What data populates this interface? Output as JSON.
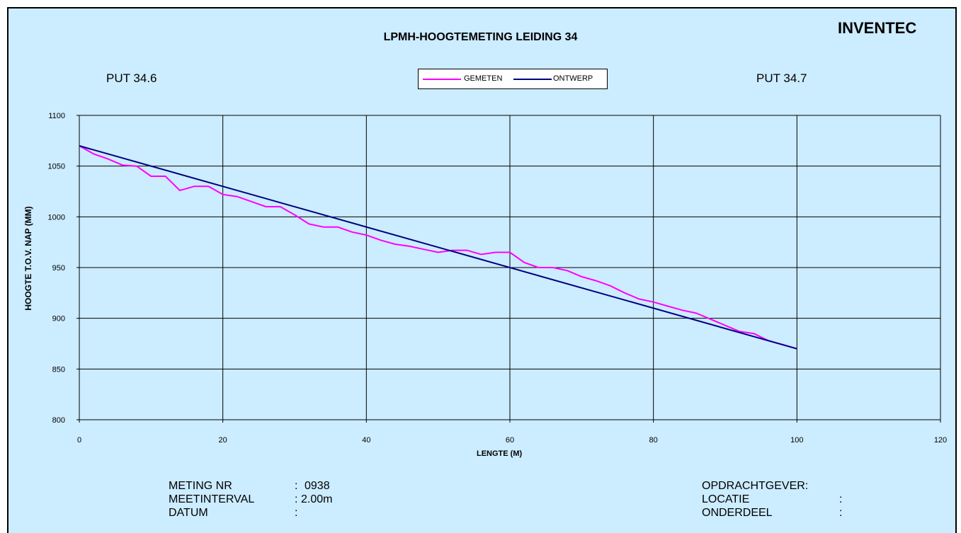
{
  "brand": "INVENTEC",
  "labels": {
    "put_left": "PUT 34.6",
    "put_right": "PUT 34.7"
  },
  "info": {
    "left": [
      {
        "label": "METING NR",
        "sep": ":",
        "value": "0938"
      },
      {
        "label": "MEETINTERVAL",
        "sep": ":",
        "value": "2.00m"
      },
      {
        "label": "DATUM",
        "sep": ":",
        "value": ""
      }
    ],
    "right": [
      {
        "label": "OPDRACHTGEVER:",
        "sep": "",
        "value": ""
      },
      {
        "label": "LOCATIE",
        "sep": ":",
        "value": ""
      },
      {
        "label": "ONDERDEEL",
        "sep": ":",
        "value": ""
      }
    ]
  },
  "colors": {
    "background": "#ccecff",
    "gemeten": "#ff00ff",
    "ontwerp": "#000080"
  },
  "chart_data": {
    "type": "line",
    "title": "LPMH-HOOGTEMETING LEIDING 34",
    "xlabel": "LENGTE (M)",
    "ylabel": "HOOGTE T.O.V. NAP (MM)",
    "xlim": [
      0,
      120
    ],
    "ylim": [
      800,
      1100
    ],
    "xticks": [
      0,
      20,
      40,
      60,
      80,
      100,
      120
    ],
    "yticks": [
      800,
      850,
      900,
      950,
      1000,
      1050,
      1100
    ],
    "grid": true,
    "legend": "top-center",
    "series": [
      {
        "name": "GEMETEN",
        "color": "#ff00ff",
        "x": [
          0,
          2,
          4,
          6,
          8,
          10,
          12,
          14,
          16,
          18,
          20,
          22,
          24,
          26,
          28,
          30,
          32,
          34,
          36,
          38,
          40,
          42,
          44,
          46,
          48,
          50,
          52,
          54,
          56,
          58,
          60,
          62,
          64,
          66,
          68,
          70,
          72,
          74,
          76,
          78,
          80,
          82,
          84,
          86,
          88,
          90,
          92,
          94,
          96,
          98,
          100
        ],
        "y": [
          1070,
          1062,
          1057,
          1051,
          1050,
          1040,
          1040,
          1026,
          1030,
          1030,
          1022,
          1020,
          1015,
          1010,
          1010,
          1002,
          993,
          990,
          990,
          985,
          982,
          977,
          973,
          971,
          968,
          965,
          967,
          967,
          963,
          965,
          965,
          955,
          950,
          950,
          947,
          941,
          937,
          932,
          925,
          919,
          916,
          912,
          908,
          905,
          899,
          893,
          887,
          885,
          878,
          874,
          870
        ]
      },
      {
        "name": "ONTWERP",
        "color": "#000080",
        "x": [
          0,
          100
        ],
        "y": [
          1070,
          870
        ]
      }
    ]
  }
}
